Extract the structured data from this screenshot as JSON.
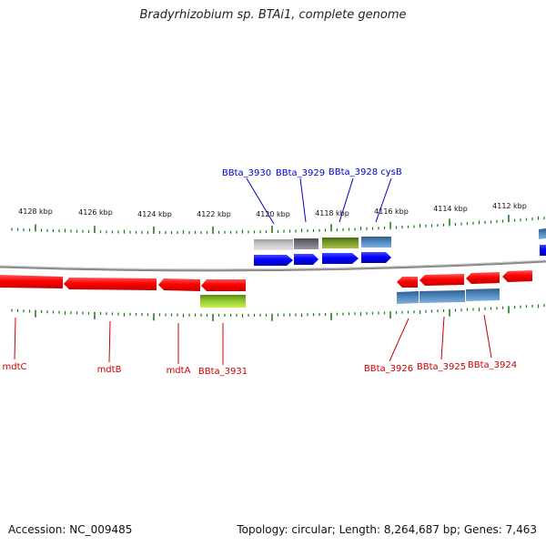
{
  "title": "Bradyrhizobium sp. BTAi1, complete genome",
  "footer": {
    "accession": "Accession: NC_009485",
    "summary": "Topology: circular; Length: 8,264,687 bp; Genes: 7,463"
  },
  "colors": {
    "forward_label": "#0000cc",
    "reverse_label": "#cc0000",
    "tick": "#117711",
    "backbone": "#888888"
  },
  "kbp_labels": [
    "4128 kbp",
    "4126 kbp",
    "4124 kbp",
    "4122 kbp",
    "4120 kbp",
    "4118 kbp",
    "4116 kbp",
    "4114 kbp",
    "4112 kbp"
  ],
  "forward_gene_labels": [
    "BBta_3930",
    "BBta_3929",
    "BBta_3928",
    "cysB"
  ],
  "reverse_gene_labels": [
    "mdtC",
    "mdtB",
    "mdtA",
    "BBta_3931",
    "BBta_3926",
    "BBta_3925",
    "BBta_3924"
  ]
}
